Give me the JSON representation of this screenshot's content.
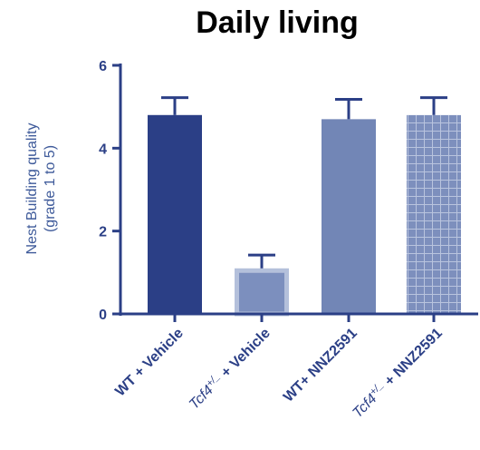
{
  "chart_data": {
    "type": "bar",
    "title": "Daily living",
    "ylabel_lines": [
      "Nest Building quality",
      "(grade 1 to 5)"
    ],
    "xlabel": "",
    "ylim": [
      0,
      6
    ],
    "yticks": [
      0,
      2,
      4,
      6
    ],
    "grid": false,
    "categories": [
      {
        "prefix": "WT + Vehicle",
        "italic": "",
        "sup": "",
        "suffix": ""
      },
      {
        "prefix": "",
        "italic": "Tcf4",
        "sup": "+/_",
        "suffix": " + Vehicle"
      },
      {
        "prefix": "WT+ NNZ2591",
        "italic": "",
        "sup": "",
        "suffix": ""
      },
      {
        "prefix": "",
        "italic": "Tcf4",
        "sup": "+/_",
        "suffix": " + NNZ2591"
      }
    ],
    "values": [
      4.8,
      1.1,
      4.7,
      4.8
    ],
    "errors": [
      0.42,
      0.32,
      0.48,
      0.42
    ],
    "bar_styles": [
      "solid-dark",
      "solid-light",
      "solid-mid",
      "grid-pattern"
    ]
  },
  "colors": {
    "axis": "#2b3f86",
    "bar_dark": "#2b3f86",
    "bar_mid": "#7286b6",
    "bar_light": "#7c8fbe",
    "bar_light_border": "#b4c0db",
    "grid_bar_fill": "#7d8fbd",
    "grid_bar_line": "#b9c4de",
    "ylabel": "#3e5a9a"
  }
}
